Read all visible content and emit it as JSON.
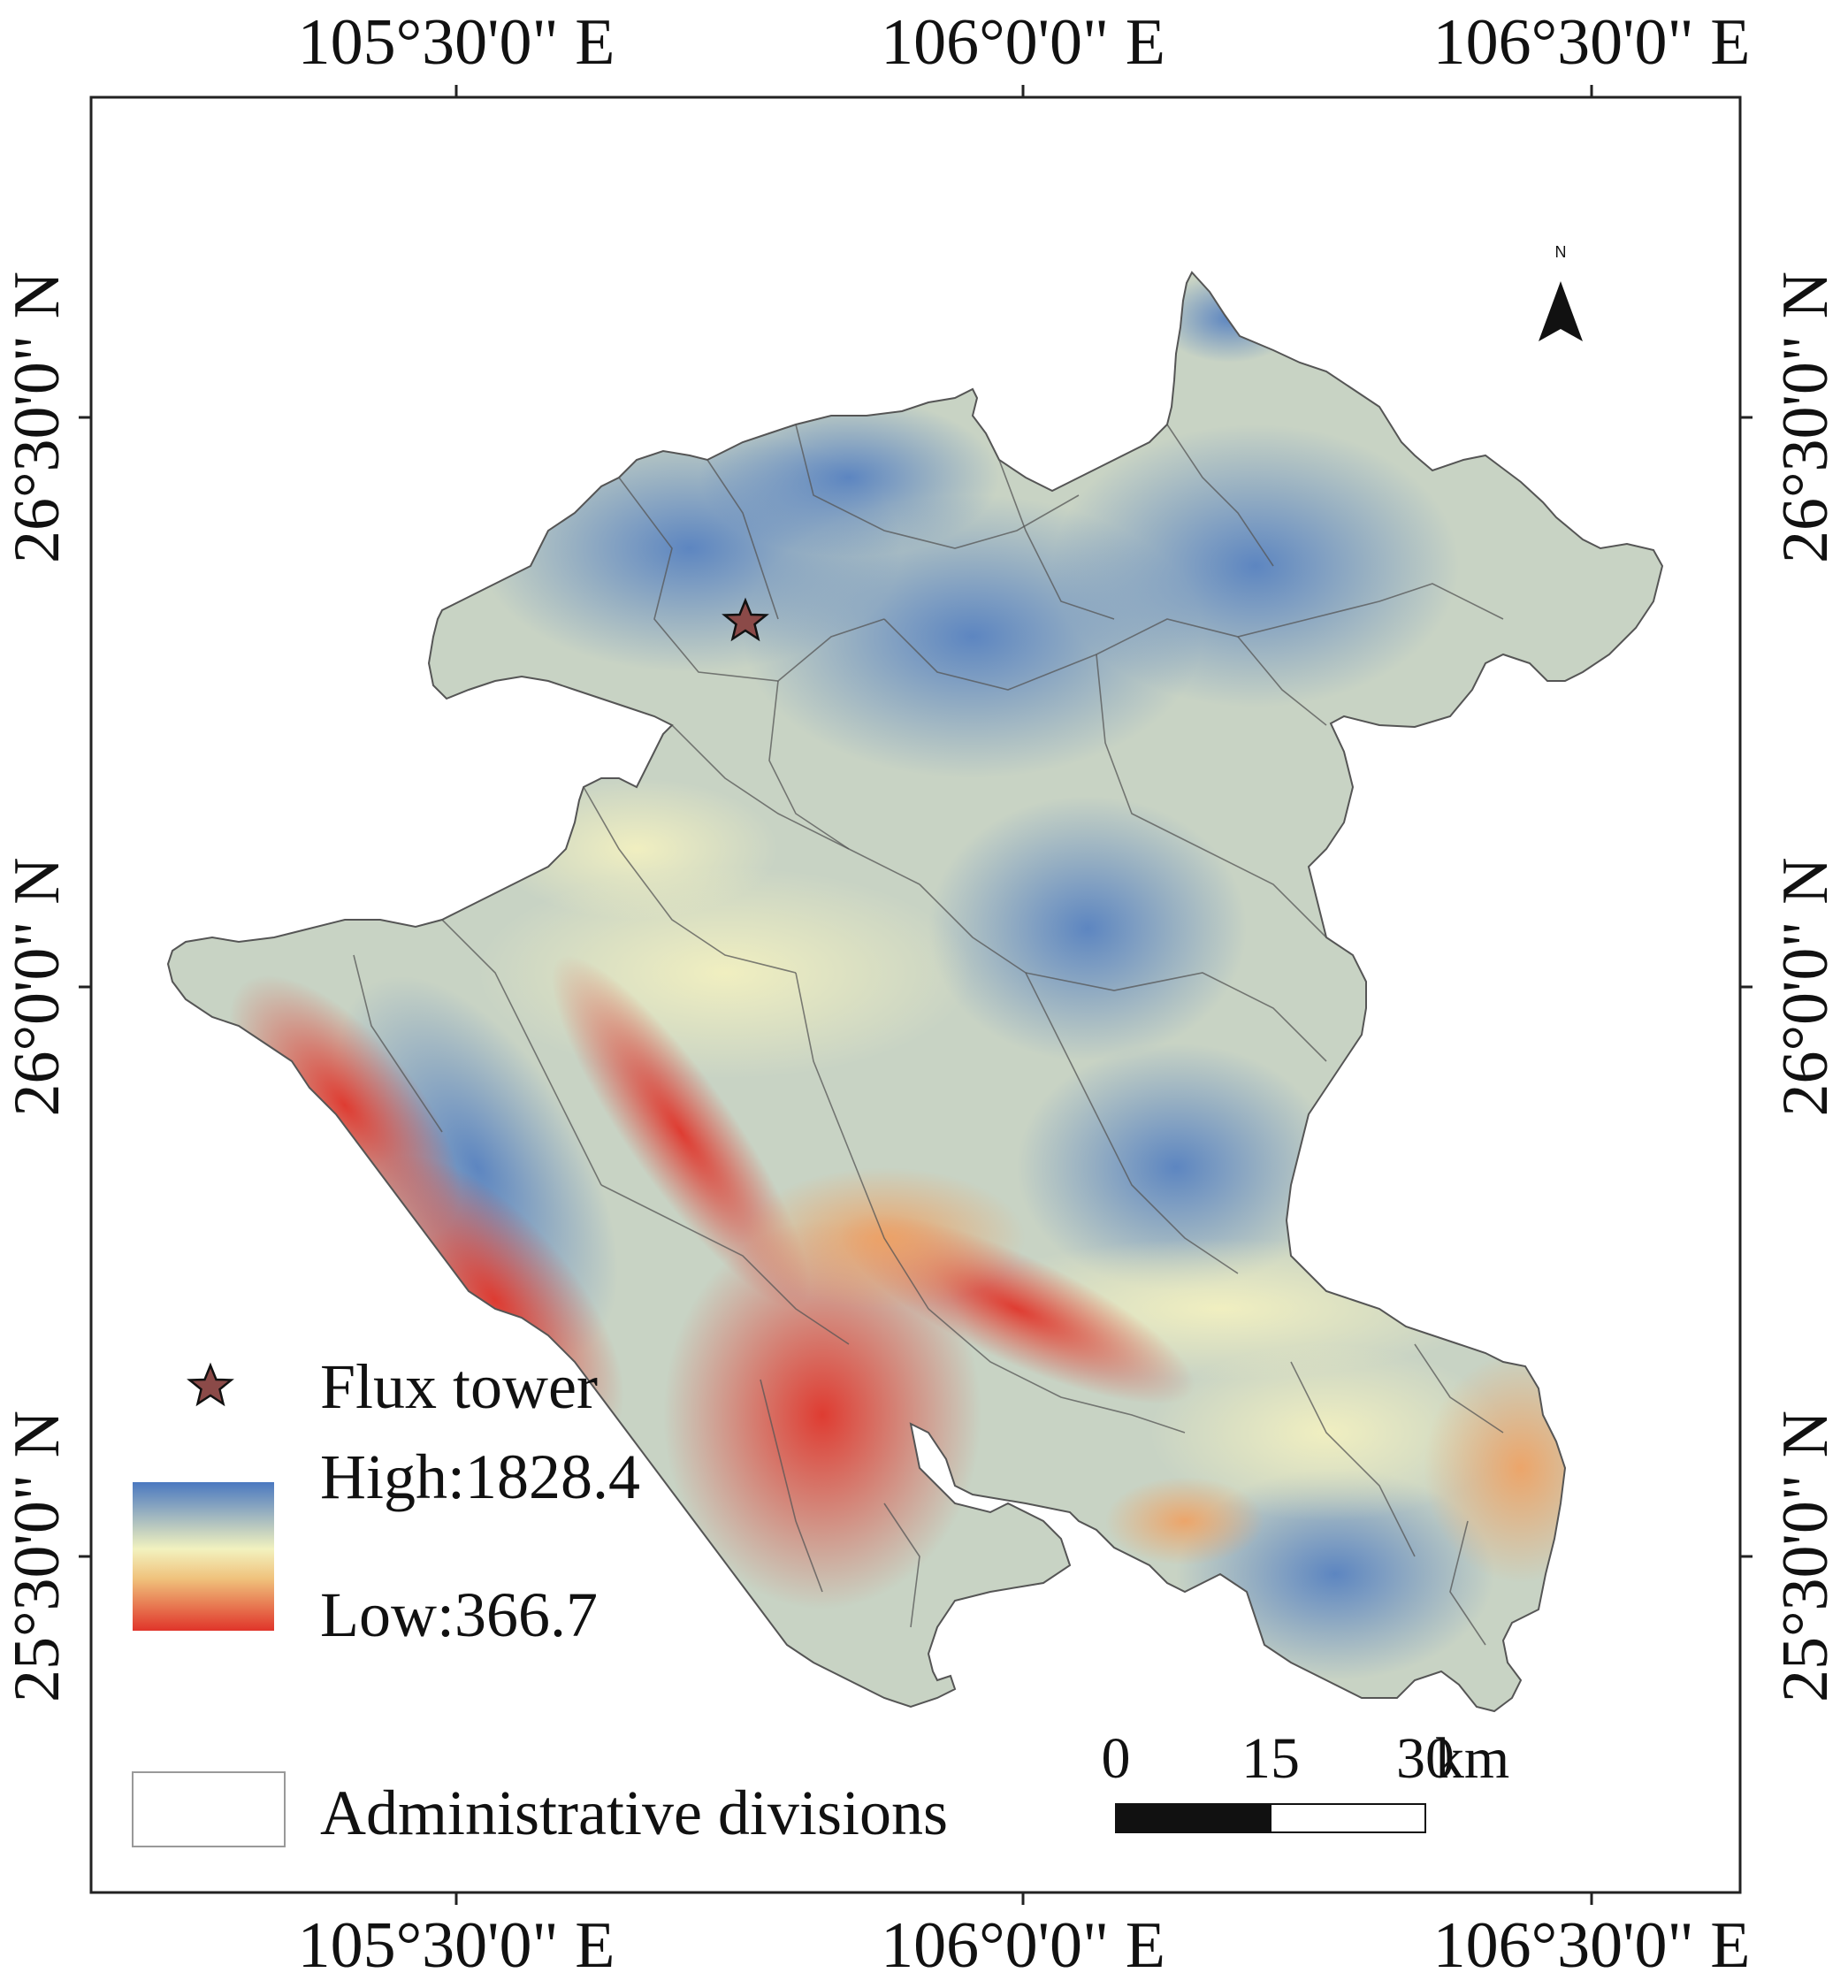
{
  "map": {
    "coords": {
      "top_lon": [
        "105°30'0\" E",
        "106°0'0\" E",
        "106°30'0\" E"
      ],
      "bottom_lon": [
        "105°30'0\" E",
        "106°0'0\" E",
        "106°30'0\" E"
      ],
      "left_lat": [
        "26°30'0\" N",
        "26°0'0\" N",
        "25°30'0\" N"
      ],
      "right_lat": [
        "26°30'0\" N",
        "26°0'0\" N",
        "25°30'0\" N"
      ]
    },
    "north_arrow": {
      "label": "N"
    },
    "legend": {
      "flux_tower_label": "Flux tower",
      "high_label": "High:1828.4",
      "low_label": "Low:366.7",
      "admin_label": "Administrative divisions"
    },
    "scale_bar": {
      "labels": [
        "0",
        "15",
        "30"
      ],
      "unit": "km"
    },
    "colors": {
      "high": "#4a78c0",
      "mid_high": "#c4d0c0",
      "mid": "#f2f2bf",
      "mid_low": "#f0c27c",
      "low": "#e0342a",
      "star": "#8b4a48",
      "boundary": "#555555"
    }
  }
}
